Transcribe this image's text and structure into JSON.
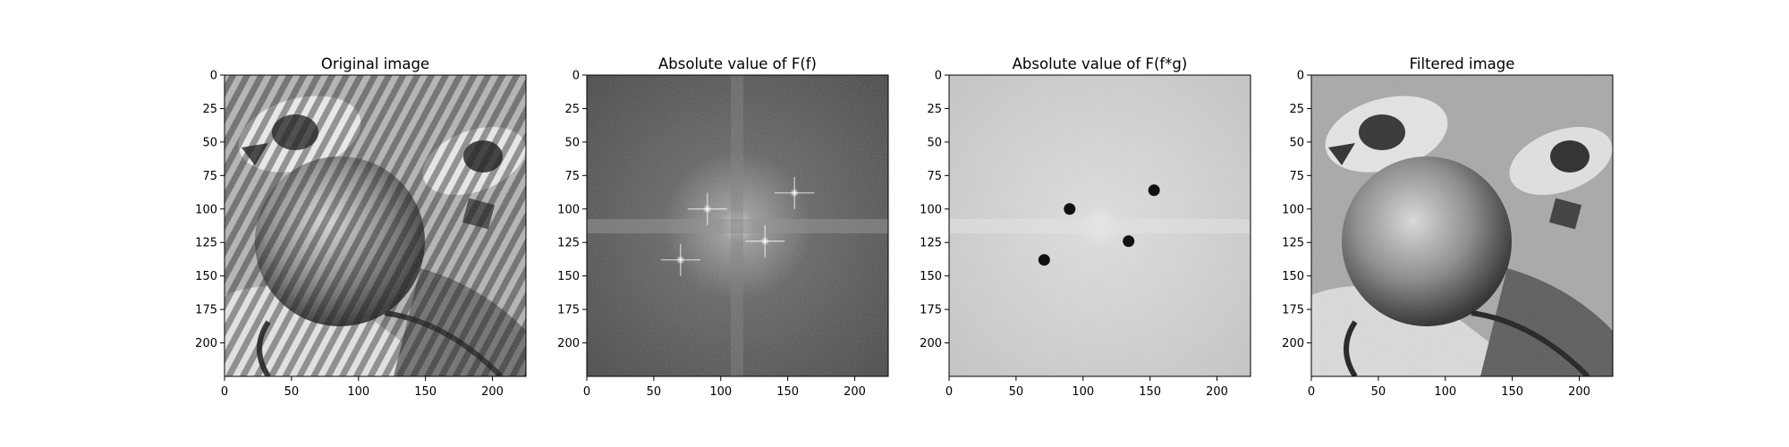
{
  "chart_data": [
    {
      "type": "image",
      "title": "Original image",
      "image_description": "grayscale photo of a clown face (eyes, round nose) overlaid with diagonal periodic stripe noise",
      "xlim": [
        0,
        225
      ],
      "ylim": [
        225,
        0
      ],
      "x_ticks": [
        0,
        50,
        100,
        150,
        200
      ],
      "y_ticks": [
        0,
        25,
        50,
        75,
        100,
        125,
        150,
        175,
        200
      ],
      "colormap": "gray"
    },
    {
      "type": "image",
      "title": "Absolute value of F(f)",
      "image_description": "log-magnitude Fourier spectrum, bright center with star-shaped noise peaks",
      "xlim": [
        0,
        225
      ],
      "ylim": [
        225,
        0
      ],
      "x_ticks": [
        0,
        50,
        100,
        150,
        200
      ],
      "y_ticks": [
        0,
        25,
        50,
        75,
        100,
        125,
        150,
        175,
        200
      ],
      "colormap": "gray",
      "noise_peaks": [
        {
          "x": 155,
          "y": 88
        },
        {
          "x": 70,
          "y": 138
        },
        {
          "x": 90,
          "y": 100
        },
        {
          "x": 133,
          "y": 124
        }
      ]
    },
    {
      "type": "image",
      "title": "Absolute value of F(f*g)",
      "image_description": "filtered spectrum with dark notch-filter dots over the noise peaks",
      "xlim": [
        0,
        225
      ],
      "ylim": [
        225,
        0
      ],
      "x_ticks": [
        0,
        50,
        100,
        150,
        200
      ],
      "y_ticks": [
        0,
        25,
        50,
        75,
        100,
        125,
        150,
        175,
        200
      ],
      "colormap": "gray",
      "notches": [
        {
          "x": 153,
          "y": 86
        },
        {
          "x": 90,
          "y": 100
        },
        {
          "x": 134,
          "y": 124
        },
        {
          "x": 71,
          "y": 138
        }
      ]
    },
    {
      "type": "image",
      "title": "Filtered image",
      "image_description": "clown face image with the periodic stripe noise removed",
      "xlim": [
        0,
        225
      ],
      "ylim": [
        225,
        0
      ],
      "x_ticks": [
        0,
        50,
        100,
        150,
        200
      ],
      "y_ticks": [
        0,
        25,
        50,
        75,
        100,
        125,
        150,
        175,
        200
      ],
      "colormap": "gray"
    }
  ]
}
